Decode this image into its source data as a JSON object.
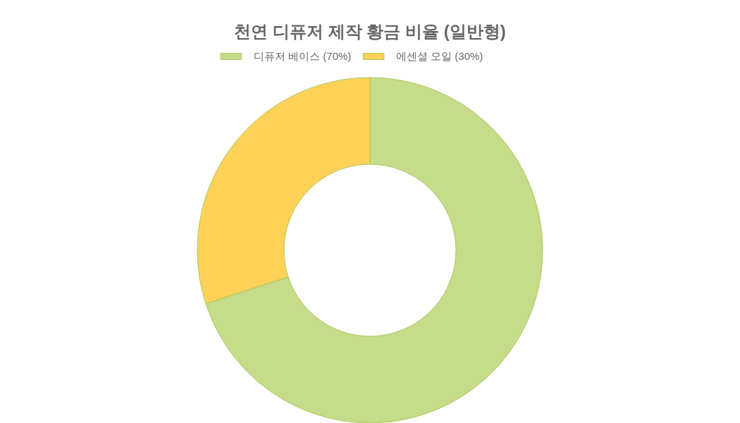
{
  "chart_data": {
    "type": "donut",
    "title": "천연 디퓨저 제작 황금 비율 (일반형)",
    "categories": [
      "디퓨저 베이스 (70%)",
      "에센셜 오일 (30%)"
    ],
    "values": [
      70,
      30
    ],
    "colors": [
      "#c5dc8a",
      "#ffd257"
    ],
    "legend": "top"
  }
}
